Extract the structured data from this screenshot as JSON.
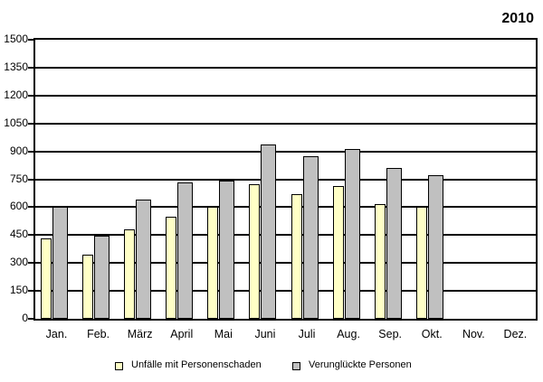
{
  "title": "2010",
  "chart_data": {
    "type": "bar",
    "title": "2010",
    "categories": [
      "Jan.",
      "Feb.",
      "März",
      "April",
      "Mai",
      "Juni",
      "Juli",
      "Aug.",
      "Sep.",
      "Okt.",
      "Nov.",
      "Dez."
    ],
    "series": [
      {
        "name": "Unfälle mit Personenschaden",
        "color": "#FFFFC6",
        "values": [
          430,
          345,
          480,
          550,
          600,
          725,
          670,
          715,
          615,
          600,
          null,
          null
        ]
      },
      {
        "name": "Verunglückte Personen",
        "color": "#C0C0C0",
        "values": [
          600,
          445,
          640,
          735,
          745,
          935,
          875,
          915,
          810,
          770,
          null,
          null
        ]
      }
    ],
    "xlabel": "",
    "ylabel": "",
    "ylim": [
      0,
      1500
    ],
    "ytick_step": 150,
    "grid": true,
    "grid_color": "#000000",
    "frame_color": "#000000",
    "background_color": "#ffffff",
    "legend_position": "bottom"
  }
}
